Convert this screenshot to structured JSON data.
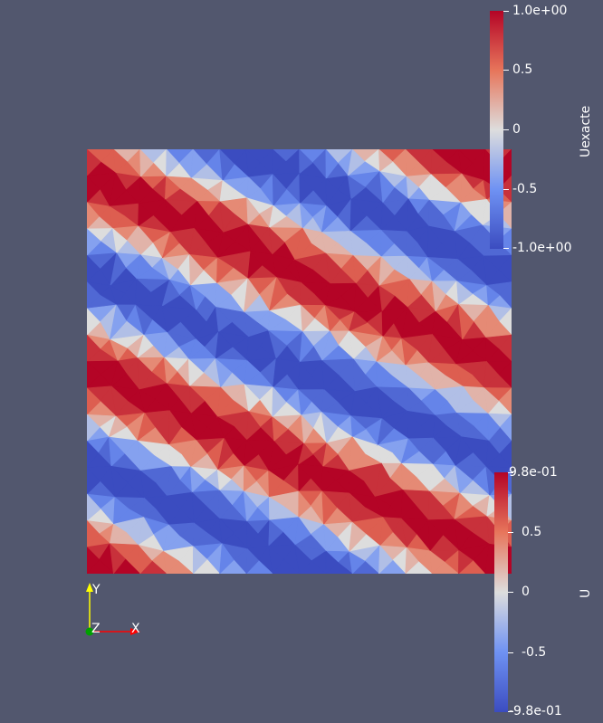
{
  "view": {
    "background_color": "#52576e"
  },
  "field": {
    "colormap": "Cool to Warm",
    "low_color": "#3b4cc0",
    "mid_color": "#dddddd",
    "high_color": "#b40426"
  },
  "colorbar_top": {
    "title": "Uexacte",
    "ticks": [
      {
        "label": "1.0e+00",
        "value": 1.0
      },
      {
        "label": "0.5",
        "value": 0.5
      },
      {
        "label": "0",
        "value": 0.0
      },
      {
        "label": "-0.5",
        "value": -0.5
      },
      {
        "label": "-1.0e+00",
        "value": -1.0
      }
    ]
  },
  "colorbar_bottom": {
    "title": "U",
    "ticks": [
      {
        "label": "9.8e-01",
        "value": 0.98
      },
      {
        "label": "0.5",
        "value": 0.5
      },
      {
        "label": "0",
        "value": 0.0
      },
      {
        "label": "-0.5",
        "value": -0.5
      },
      {
        "label": "-9.8e-01",
        "value": -0.98
      }
    ]
  },
  "axes_widget": {
    "y_label": "Y",
    "z_label": "Z",
    "x_label": "X",
    "y_color": "#ffff00",
    "x_color": "#ff0000",
    "z_color": "#00a000"
  }
}
